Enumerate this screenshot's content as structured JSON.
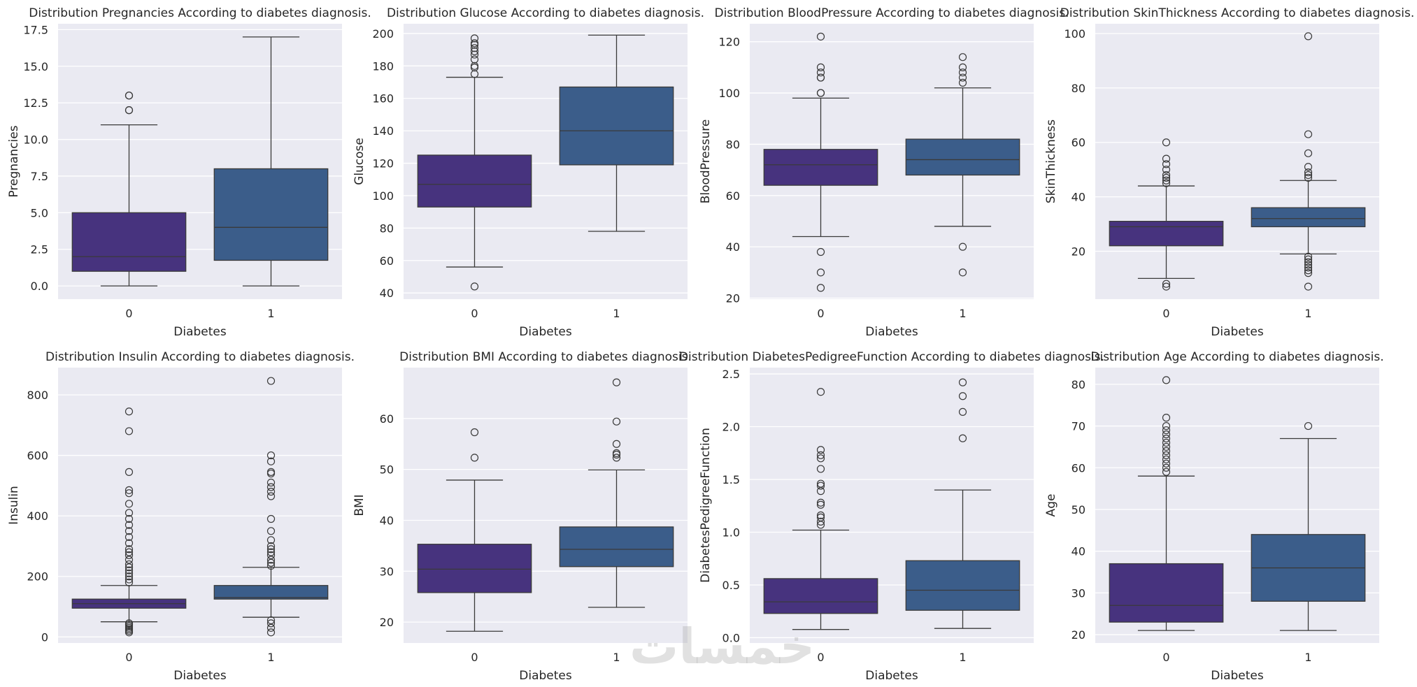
{
  "watermark_text": "خمسات",
  "colors": {
    "background": "#eaeaf2",
    "grid": "#ffffff",
    "group0": "#47337e",
    "group1": "#3b5d8a",
    "line": "#3a3a3a",
    "text": "#262626"
  },
  "chart_data": [
    {
      "type": "box",
      "title": "Distribution Pregnancies According to diabetes diagnosis.",
      "xlabel": "Diabetes",
      "ylabel": "Pregnancies",
      "categories": [
        "0",
        "1"
      ],
      "ylim": [
        -0.9,
        17.9
      ],
      "yticks": [
        0,
        2.5,
        5,
        7.5,
        10,
        12.5,
        15,
        17.5
      ],
      "ytick_labels": [
        "0.0",
        "2.5",
        "5.0",
        "7.5",
        "10.0",
        "12.5",
        "15.0",
        "17.5"
      ],
      "boxes": [
        {
          "whisker_low": 0,
          "q1": 1,
          "median": 2,
          "q3": 5,
          "whisker_high": 11,
          "outliers": [
            12,
            12,
            13,
            13
          ]
        },
        {
          "whisker_low": 0,
          "q1": 1.75,
          "median": 4,
          "q3": 8,
          "whisker_high": 17,
          "outliers": []
        }
      ]
    },
    {
      "type": "box",
      "title": "Distribution Glucose According to diabetes diagnosis.",
      "xlabel": "Diabetes",
      "ylabel": "Glucose",
      "categories": [
        "0",
        "1"
      ],
      "ylim": [
        36.2,
        206
      ],
      "yticks": [
        40,
        60,
        80,
        100,
        120,
        140,
        160,
        180,
        200
      ],
      "ytick_labels": [
        "40",
        "60",
        "80",
        "100",
        "120",
        "140",
        "160",
        "180",
        "200"
      ],
      "boxes": [
        {
          "whisker_low": 56,
          "q1": 93,
          "median": 107,
          "q3": 125,
          "whisker_high": 173,
          "outliers": [
            44,
            175,
            179,
            180,
            184,
            187,
            189,
            191,
            193,
            194,
            197
          ]
        },
        {
          "whisker_low": 78,
          "q1": 119,
          "median": 140,
          "q3": 167,
          "whisker_high": 199,
          "outliers": []
        }
      ]
    },
    {
      "type": "box",
      "title": "Distribution BloodPressure According to diabetes diagnosis.",
      "xlabel": "Diabetes",
      "ylabel": "BloodPressure",
      "categories": [
        "0",
        "1"
      ],
      "ylim": [
        19.6,
        127
      ],
      "yticks": [
        20,
        40,
        60,
        80,
        100,
        120
      ],
      "ytick_labels": [
        "20",
        "40",
        "60",
        "80",
        "100",
        "120"
      ],
      "boxes": [
        {
          "whisker_low": 44,
          "q1": 64,
          "median": 72,
          "q3": 78,
          "whisker_high": 98,
          "outliers": [
            24,
            30,
            38,
            100,
            100,
            106,
            106,
            108,
            110,
            122
          ]
        },
        {
          "whisker_low": 48,
          "q1": 68,
          "median": 74,
          "q3": 82,
          "whisker_high": 102,
          "outliers": [
            30,
            40,
            104,
            106,
            108,
            110,
            114
          ]
        }
      ]
    },
    {
      "type": "box",
      "title": "Distribution SkinThickness According to diabetes diagnosis.",
      "xlabel": "Diabetes",
      "ylabel": "SkinThickness",
      "categories": [
        "0",
        "1"
      ],
      "ylim": [
        2.4,
        103.6
      ],
      "yticks": [
        20,
        40,
        60,
        80,
        100
      ],
      "ytick_labels": [
        "20",
        "40",
        "60",
        "80",
        "100"
      ],
      "boxes": [
        {
          "whisker_low": 10,
          "q1": 22,
          "median": 29,
          "q3": 31,
          "whisker_high": 44,
          "outliers": [
            7,
            8,
            45,
            46,
            47,
            48,
            50,
            52,
            54,
            60
          ]
        },
        {
          "whisker_low": 19,
          "q1": 29,
          "median": 32,
          "q3": 36,
          "whisker_high": 46,
          "outliers": [
            7,
            12,
            13,
            14,
            15,
            16,
            17,
            18,
            47,
            48,
            49,
            51,
            56,
            63,
            99
          ]
        }
      ]
    },
    {
      "type": "box",
      "title": "Distribution Insulin According to diabetes diagnosis.",
      "xlabel": "Diabetes",
      "ylabel": "Insulin",
      "categories": [
        "0",
        "1"
      ],
      "ylim": [
        -20,
        890
      ],
      "yticks": [
        0,
        200,
        400,
        600,
        800
      ],
      "ytick_labels": [
        "0",
        "200",
        "400",
        "600",
        "800"
      ],
      "boxes": [
        {
          "whisker_low": 50,
          "q1": 95,
          "median": 110,
          "q3": 125,
          "whisker_high": 170,
          "outliers": [
            15,
            20,
            25,
            30,
            35,
            40,
            45,
            180,
            190,
            200,
            210,
            220,
            230,
            240,
            255,
            270,
            280,
            290,
            310,
            330,
            350,
            370,
            390,
            410,
            440,
            475,
            485,
            545,
            680,
            745
          ]
        },
        {
          "whisker_low": 65,
          "q1": 125,
          "median": 130,
          "q3": 170,
          "whisker_high": 230,
          "outliers": [
            15,
            30,
            45,
            55,
            235,
            245,
            255,
            270,
            280,
            290,
            300,
            320,
            350,
            390,
            465,
            480,
            495,
            510,
            540,
            545,
            580,
            600,
            846
          ]
        }
      ]
    },
    {
      "type": "box",
      "title": "Distribution BMI According to diabetes diagnosis.",
      "xlabel": "Diabetes",
      "ylabel": "BMI",
      "categories": [
        "0",
        "1"
      ],
      "ylim": [
        15.9,
        70
      ],
      "yticks": [
        20,
        30,
        40,
        50,
        60
      ],
      "ytick_labels": [
        "20",
        "30",
        "40",
        "50",
        "60"
      ],
      "boxes": [
        {
          "whisker_low": 18.2,
          "q1": 25.8,
          "median": 30.4,
          "q3": 35.3,
          "whisker_high": 47.9,
          "outliers": [
            52.3,
            57.3
          ]
        },
        {
          "whisker_low": 22.9,
          "q1": 30.9,
          "median": 34.3,
          "q3": 38.7,
          "whisker_high": 49.9,
          "outliers": [
            52.3,
            52.9,
            53.2,
            55.0,
            59.4,
            67.1
          ]
        }
      ]
    },
    {
      "type": "box",
      "title": "Distribution DiabetesPedigreeFunction According to diabetes diagnosis.",
      "xlabel": "Diabetes",
      "ylabel": "DiabetesPedigreeFunction",
      "categories": [
        "0",
        "1"
      ],
      "ylim": [
        -0.05,
        2.56
      ],
      "yticks": [
        0,
        0.5,
        1,
        1.5,
        2,
        2.5
      ],
      "ytick_labels": [
        "0.0",
        "0.5",
        "1.0",
        "1.5",
        "2.0",
        "2.5"
      ],
      "boxes": [
        {
          "whisker_low": 0.078,
          "q1": 0.23,
          "median": 0.34,
          "q3": 0.56,
          "whisker_high": 1.02,
          "outliers": [
            1.07,
            1.1,
            1.14,
            1.16,
            1.26,
            1.28,
            1.39,
            1.44,
            1.46,
            1.6,
            1.7,
            1.73,
            1.78,
            2.33
          ]
        },
        {
          "whisker_low": 0.088,
          "q1": 0.26,
          "median": 0.45,
          "q3": 0.73,
          "whisker_high": 1.4,
          "outliers": [
            1.89,
            2.14,
            2.29,
            2.42
          ]
        }
      ]
    },
    {
      "type": "box",
      "title": "Distribution Age According to diabetes diagnosis.",
      "xlabel": "Diabetes",
      "ylabel": "Age",
      "categories": [
        "0",
        "1"
      ],
      "ylim": [
        18,
        84
      ],
      "yticks": [
        20,
        30,
        40,
        50,
        60,
        70,
        80
      ],
      "ytick_labels": [
        "20",
        "30",
        "40",
        "50",
        "60",
        "70",
        "80"
      ],
      "boxes": [
        {
          "whisker_low": 21,
          "q1": 23,
          "median": 27,
          "q3": 37,
          "whisker_high": 58,
          "outliers": [
            59,
            60,
            61,
            62,
            63,
            64,
            65,
            66,
            67,
            68,
            69,
            70,
            72,
            81
          ]
        },
        {
          "whisker_low": 21,
          "q1": 28,
          "median": 36,
          "q3": 44,
          "whisker_high": 67,
          "outliers": [
            70
          ]
        }
      ]
    }
  ]
}
